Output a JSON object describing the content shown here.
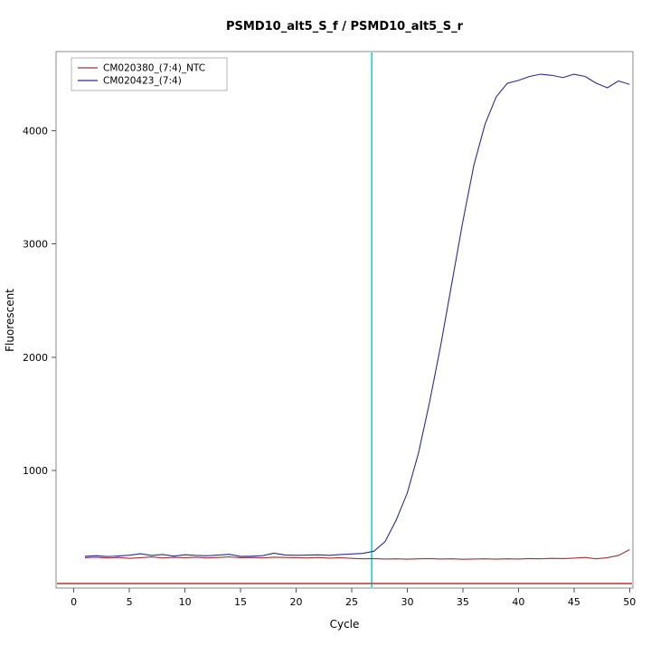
{
  "chart_data": {
    "type": "line",
    "title": "PSMD10_alt5_S_f / PSMD10_alt5_S_r",
    "xlabel": "Cycle",
    "ylabel": "Fluorescent",
    "xlim": [
      -1.6,
      50.3
    ],
    "ylim": [
      -40,
      4700
    ],
    "xticks": [
      0,
      5,
      10,
      15,
      20,
      25,
      30,
      35,
      40,
      45,
      50
    ],
    "yticks": [
      1000,
      2000,
      3000,
      4000
    ],
    "grid": false,
    "legend_position": "top-left",
    "x": [
      1,
      2,
      3,
      4,
      5,
      6,
      7,
      8,
      9,
      10,
      11,
      12,
      13,
      14,
      15,
      16,
      17,
      18,
      19,
      20,
      21,
      22,
      23,
      24,
      25,
      26,
      27,
      28,
      29,
      30,
      31,
      32,
      33,
      34,
      35,
      36,
      37,
      38,
      39,
      40,
      41,
      42,
      43,
      44,
      45,
      46,
      47,
      48,
      49,
      50
    ],
    "series": [
      {
        "name": "CM020380_(7:4)_NTC",
        "color": "#9e3434",
        "values": [
          228,
          232,
          225,
          230,
          222,
          228,
          235,
          226,
          231,
          228,
          232,
          226,
          230,
          235,
          228,
          230,
          226,
          232,
          230,
          228,
          226,
          230,
          224,
          228,
          222,
          218,
          220,
          216,
          218,
          215,
          218,
          220,
          216,
          218,
          214,
          216,
          218,
          215,
          218,
          216,
          220,
          218,
          222,
          220,
          224,
          230,
          218,
          228,
          248,
          300
        ]
      },
      {
        "name": "CM020423_(7:4)",
        "color": "#2b2b9e",
        "values": [
          240,
          246,
          238,
          243,
          250,
          263,
          248,
          256,
          242,
          254,
          248,
          245,
          251,
          258,
          239,
          241,
          246,
          268,
          252,
          249,
          251,
          253,
          249,
          256,
          261,
          266,
          285,
          370,
          560,
          800,
          1150,
          1600,
          2100,
          2650,
          3200,
          3700,
          4060,
          4300,
          4420,
          4445,
          4480,
          4500,
          4490,
          4470,
          4500,
          4480,
          4420,
          4380,
          4440,
          4410
        ]
      }
    ],
    "threshold_cycle_line": {
      "x": 26.8,
      "color": "#00dddd"
    },
    "baseline_line": {
      "y": 0,
      "color": "#c03030"
    },
    "box_color": "#8a8a8a",
    "tick_color": "#555555"
  }
}
